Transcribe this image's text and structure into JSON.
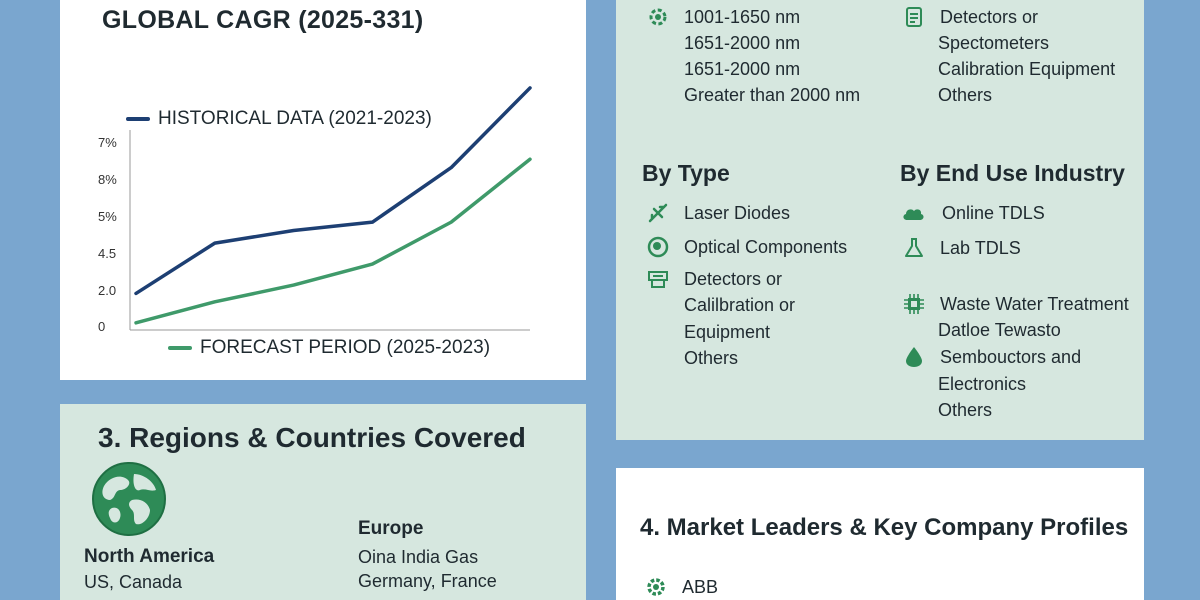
{
  "chart_panel": {
    "title": "GLOBAL CAGR (2025-331)",
    "legend_historical": "HISTORICAL DATA (2021-2023)",
    "legend_forecast": "FORECAST PERIOD (2025-2023)"
  },
  "chart_data": {
    "type": "line",
    "title": "GLOBAL CAGR (2025-331)",
    "y_tick_labels": [
      "0",
      "2.0",
      "4.5",
      "5%",
      "8%",
      "7%"
    ],
    "y_tick_values": [
      0,
      1,
      2,
      3,
      4,
      5
    ],
    "ylim": [
      0,
      5
    ],
    "grid": false,
    "x": [
      0,
      1,
      2,
      3,
      4,
      5
    ],
    "series": [
      {
        "name": "HISTORICAL DATA (2021-2023)",
        "color": "#1d3f73",
        "values": [
          0.8,
          2.0,
          2.3,
          2.5,
          3.8,
          5.7
        ]
      },
      {
        "name": "FORECAST PERIOD (2025-2023)",
        "color": "#3f9a6a",
        "values": [
          0.1,
          0.6,
          1.0,
          1.5,
          2.5,
          4.0
        ]
      }
    ]
  },
  "regions": {
    "title": "3. Regions & Countries Covered",
    "north_america": {
      "name": "North America",
      "countries": [
        "US, Canada"
      ]
    },
    "europe": {
      "name": "Europe",
      "countries": [
        "Oina India Gas",
        "Germany, France"
      ]
    }
  },
  "segments": {
    "wavelength_items": [
      "1001-1650 nm",
      "1651-2000 nm",
      "1651-2000 nm",
      "Greater than 2000 nm"
    ],
    "component_items": [
      "Detectors or",
      "Spectometers",
      "Calibration Equipment",
      "Others"
    ],
    "by_type": {
      "heading": "By Type",
      "items": [
        "Laser Diodes",
        "Optical Components",
        "Detectors or",
        "Calilbration or",
        "Equipment",
        "Others"
      ]
    },
    "by_end_use": {
      "heading": "By End Use Industry",
      "items": [
        "Online TDLS",
        "Lab TDLS",
        "Waste Water Treatment",
        "Datloe Tewasto",
        "Sembouctors and",
        "Electronics",
        "Others"
      ]
    }
  },
  "leaders": {
    "title": "4. Market Leaders & Key Company Profiles",
    "companies": [
      "ABB"
    ]
  },
  "colors": {
    "background": "#7aa6cf",
    "panel_green": "#d6e7df",
    "accent_green": "#2e8b57",
    "historical": "#1d3f73",
    "forecast": "#3f9a6a"
  }
}
